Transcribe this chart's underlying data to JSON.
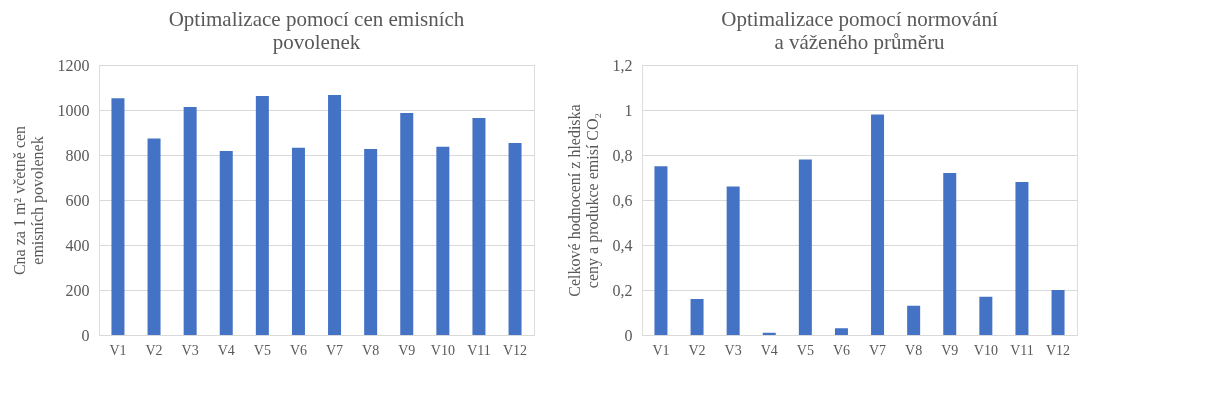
{
  "chart_data": [
    {
      "type": "bar",
      "title": "Optimalizace pomocí cen emisních\npovolenek",
      "ylabel": "Cna za 1 m² včetně cen\nemisních povolenek",
      "categories": [
        "V1",
        "V2",
        "V3",
        "V4",
        "V5",
        "V6",
        "V7",
        "V8",
        "V9",
        "V10",
        "V11",
        "V12"
      ],
      "values": [
        1052,
        873,
        1013,
        818,
        1062,
        832,
        1067,
        827,
        987,
        837,
        965,
        853
      ],
      "color": "#4472c4",
      "ylim": [
        0,
        1200
      ],
      "yticks": [
        0,
        200,
        400,
        600,
        800,
        1000,
        1200
      ],
      "grid": "y"
    },
    {
      "type": "bar",
      "title": "Optimalizace pomocí normování\na váženého průměru",
      "ylabel": "Celkové hodnocení z hlediska\nceny a produkce emisí CO₂",
      "categories": [
        "V1",
        "V2",
        "V3",
        "V4",
        "V5",
        "V6",
        "V7",
        "V8",
        "V9",
        "V10",
        "V11",
        "V12"
      ],
      "values": [
        0.75,
        0.16,
        0.66,
        0.01,
        0.78,
        0.03,
        0.98,
        0.13,
        0.72,
        0.17,
        0.68,
        0.2
      ],
      "color": "#4472c4",
      "ylim": [
        0,
        1.2
      ],
      "yticks": [
        0,
        {
          "value": 0.2,
          "label": "0,2"
        },
        {
          "value": 0.4,
          "label": "0,4"
        },
        {
          "value": 0.6,
          "label": "0,6"
        },
        {
          "value": 0.8,
          "label": "0,8"
        },
        1,
        {
          "value": 1.2,
          "label": "1,2"
        }
      ],
      "grid": "y"
    }
  ]
}
